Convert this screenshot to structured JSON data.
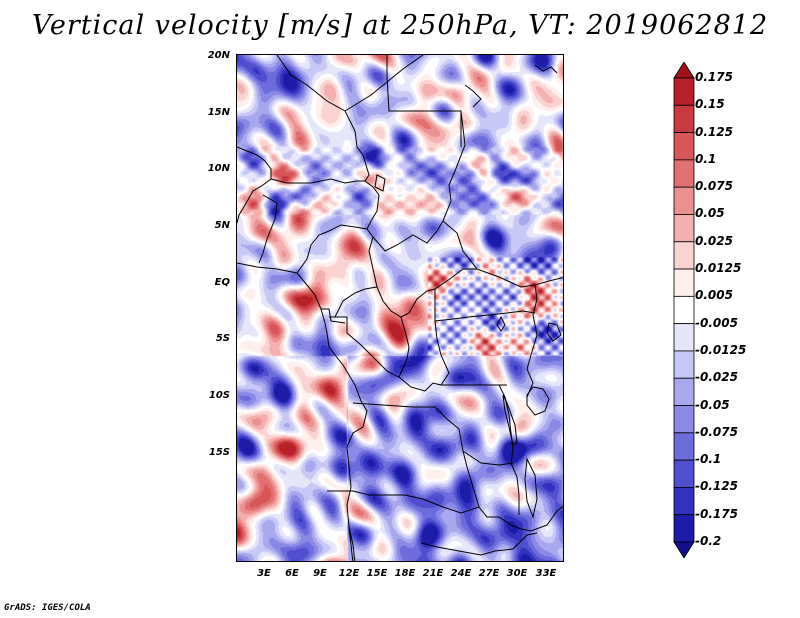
{
  "title": "Vertical velocity [m/s] at 250hPa, VT: 2019062812",
  "footer": "GrADS: IGES/COLA",
  "map": {
    "lat_labels": [
      "20N",
      "15N",
      "10N",
      "5N",
      "EQ",
      "5S",
      "10S",
      "15S"
    ],
    "lon_labels": [
      "3E",
      "6E",
      "9E",
      "12E",
      "15E",
      "18E",
      "21E",
      "24E",
      "27E",
      "30E",
      "33E"
    ]
  },
  "colorbar": {
    "labels": [
      "0.175",
      "0.15",
      "0.125",
      "0.1",
      "0.075",
      "0.05",
      "0.025",
      "0.0125",
      "0.005",
      "-0.005",
      "-0.0125",
      "-0.025",
      "-0.05",
      "-0.075",
      "-0.1",
      "-0.125",
      "-0.175",
      "-0.2"
    ],
    "colors": [
      "#a01218",
      "#b8202a",
      "#c93a3f",
      "#d85558",
      "#e27070",
      "#ec9090",
      "#f4b0ae",
      "#fad2d0",
      "#fff0ee",
      "#ffffff",
      "#e6e6fb",
      "#c8c8f6",
      "#a8a8ee",
      "#8a8ae6",
      "#6c6cdc",
      "#4f4fd0",
      "#3232c0",
      "#1c1ca8",
      "#120e8c"
    ]
  }
}
